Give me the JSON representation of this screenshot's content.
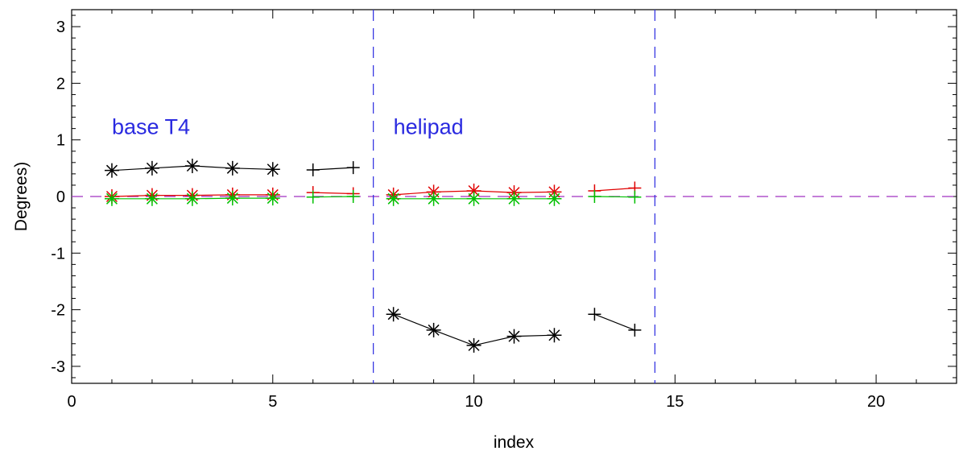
{
  "chart_data": {
    "type": "line",
    "title": "",
    "xlabel": "index",
    "ylabel": "Degrees)",
    "xlim": [
      0,
      22
    ],
    "ylim": [
      -3.3,
      3.3
    ],
    "x_ticks": [
      0,
      5,
      10,
      15,
      20
    ],
    "y_ticks": [
      -3,
      -2,
      -1,
      0,
      1,
      2,
      3
    ],
    "grid": false,
    "reference_lines": [
      {
        "orientation": "horizontal",
        "value": 0,
        "color": "#a030c0",
        "style": "dashed"
      },
      {
        "orientation": "vertical",
        "value": 7.5,
        "color": "#2a2ae0",
        "style": "dashed"
      },
      {
        "orientation": "vertical",
        "value": 14.5,
        "color": "#2a2ae0",
        "style": "dashed"
      }
    ],
    "annotations": [
      {
        "text": "base T4",
        "x": 1.0,
        "y": 1.1,
        "color": "#2a2ae0"
      },
      {
        "text": "helipad",
        "x": 8.0,
        "y": 1.1,
        "color": "#2a2ae0"
      }
    ],
    "series": [
      {
        "color": "#000000",
        "marker": "asterisk",
        "x": [
          1,
          2,
          3,
          4,
          5
        ],
        "y": [
          0.46,
          0.5,
          0.54,
          0.5,
          0.48
        ]
      },
      {
        "color": "#000000",
        "marker": "plus",
        "x": [
          6,
          7
        ],
        "y": [
          0.47,
          0.51
        ]
      },
      {
        "color": "#000000",
        "marker": "asterisk",
        "x": [
          8,
          9,
          10,
          11,
          12
        ],
        "y": [
          -2.08,
          -2.36,
          -2.63,
          -2.47,
          -2.45
        ]
      },
      {
        "color": "#000000",
        "marker": "plus",
        "x": [
          13,
          14
        ],
        "y": [
          -2.08,
          -2.36
        ]
      },
      {
        "color": "#e00000",
        "marker": "asterisk",
        "x": [
          1,
          2,
          3,
          4,
          5
        ],
        "y": [
          0.0,
          0.02,
          0.02,
          0.03,
          0.03
        ]
      },
      {
        "color": "#e00000",
        "marker": "plus",
        "x": [
          6,
          7
        ],
        "y": [
          0.07,
          0.05
        ]
      },
      {
        "color": "#e00000",
        "marker": "asterisk",
        "x": [
          8,
          9,
          10,
          11,
          12
        ],
        "y": [
          0.03,
          0.08,
          0.1,
          0.07,
          0.08
        ]
      },
      {
        "color": "#e00000",
        "marker": "plus",
        "x": [
          13,
          14
        ],
        "y": [
          0.1,
          0.15
        ]
      },
      {
        "color": "#00c000",
        "marker": "asterisk",
        "x": [
          1,
          2,
          3,
          4,
          5
        ],
        "y": [
          -0.04,
          -0.04,
          -0.04,
          -0.03,
          -0.03
        ]
      },
      {
        "color": "#00c000",
        "marker": "plus",
        "x": [
          6,
          7
        ],
        "y": [
          -0.01,
          0.0
        ]
      },
      {
        "color": "#00c000",
        "marker": "asterisk",
        "x": [
          8,
          9,
          10,
          11,
          12
        ],
        "y": [
          -0.04,
          -0.04,
          -0.04,
          -0.04,
          -0.04
        ]
      },
      {
        "color": "#00c000",
        "marker": "plus",
        "x": [
          13,
          14
        ],
        "y": [
          0.0,
          -0.01
        ]
      }
    ]
  }
}
